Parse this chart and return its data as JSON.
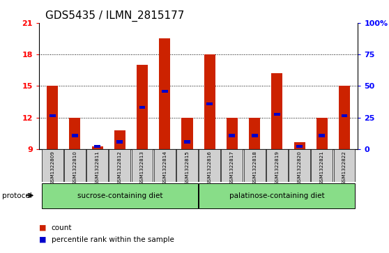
{
  "title": "GDS5435 / ILMN_2815177",
  "samples": [
    "GSM1322809",
    "GSM1322810",
    "GSM1322811",
    "GSM1322812",
    "GSM1322813",
    "GSM1322814",
    "GSM1322815",
    "GSM1322816",
    "GSM1322817",
    "GSM1322818",
    "GSM1322819",
    "GSM1322820",
    "GSM1322821",
    "GSM1322822"
  ],
  "count_values": [
    15.0,
    12.0,
    9.3,
    10.8,
    17.0,
    19.5,
    12.0,
    18.0,
    12.0,
    12.0,
    16.2,
    9.7,
    12.0,
    15.0
  ],
  "percentile_values": [
    12.2,
    10.3,
    9.3,
    9.7,
    13.0,
    14.5,
    9.7,
    13.3,
    10.3,
    10.3,
    12.3,
    9.3,
    10.3,
    12.2
  ],
  "ymin": 9,
  "ymax": 21,
  "yticks_left": [
    9,
    12,
    15,
    18,
    21
  ],
  "yticks_right": [
    0,
    25,
    50,
    75,
    100
  ],
  "yticks_right_vals": [
    9,
    12,
    15,
    18,
    21
  ],
  "groups": [
    {
      "label": "sucrose-containing diet",
      "start": 0,
      "end": 6
    },
    {
      "label": "palatinose-containing diet",
      "start": 7,
      "end": 13
    }
  ],
  "bar_color": "#cc2200",
  "percentile_color": "#0000cc",
  "bar_width": 0.5,
  "background_color": "#ffffff",
  "plot_bg_color": "#ffffff",
  "group_bg_color": "#88dd88",
  "sample_bg_color": "#d0d0d0",
  "title_fontsize": 11,
  "tick_fontsize": 8,
  "label_fontsize": 8
}
